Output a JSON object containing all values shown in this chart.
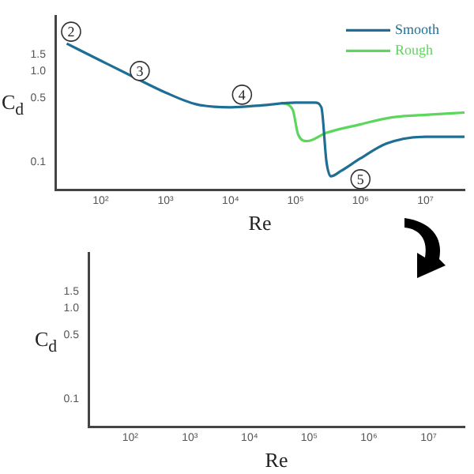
{
  "chart_data": [
    {
      "type": "line",
      "xlabel": "Re",
      "ylabel": "C$_{d}$",
      "log": "xy",
      "xlim": [
        20,
        40000000
      ],
      "ylim": [
        0.05,
        4
      ],
      "xticks": [
        {
          "value": 100,
          "label": "10²"
        },
        {
          "value": 1000,
          "label": "10³"
        },
        {
          "value": 10000,
          "label": "10⁴"
        },
        {
          "value": 100000,
          "label": "10⁵"
        },
        {
          "value": 1000000,
          "label": "10⁶"
        },
        {
          "value": 10000000,
          "label": "10⁷"
        }
      ],
      "yticks": [
        {
          "value": 0.1,
          "label": "0.1"
        },
        {
          "value": 0.5,
          "label": "0.5"
        },
        {
          "value": 1,
          "label": "1.0"
        },
        {
          "value": 1.5,
          "label": "1.5"
        }
      ],
      "grid": false,
      "legend": "top right",
      "marker": "none",
      "series": [
        {
          "name": "Smooth",
          "color": "#1f6e94",
          "x": [
            30,
            100,
            300,
            1000,
            3000,
            10000,
            30000,
            100000,
            200000,
            250000,
            300000,
            350000,
            500000,
            1000000,
            2500000,
            10000000,
            40000000
          ],
          "values": [
            2.0,
            1.3,
            0.88,
            0.58,
            0.43,
            0.4,
            0.42,
            0.45,
            0.45,
            0.4,
            0.1,
            0.07,
            0.08,
            0.11,
            0.16,
            0.19,
            0.19
          ]
        },
        {
          "name": "Rough",
          "color": "#5cd65c",
          "x": [
            60000,
            90000,
            110000,
            150000,
            300000,
            1000000,
            3000000,
            10000000,
            40000000
          ],
          "values": [
            0.45,
            0.38,
            0.2,
            0.17,
            0.21,
            0.26,
            0.31,
            0.33,
            0.35
          ]
        }
      ],
      "annotations": [
        {
          "text": "2",
          "x": 35,
          "y": 2.7
        },
        {
          "text": "3",
          "x": 400,
          "y": 1.0
        },
        {
          "text": "4",
          "x": 15000,
          "y": 0.55
        },
        {
          "text": "5",
          "x": 1000000,
          "y": 0.065
        }
      ]
    },
    {
      "type": "line",
      "xlabel": "Re",
      "ylabel": "C$_{d}$",
      "log": "xy",
      "xlim": [
        20,
        40000000
      ],
      "ylim": [
        0.05,
        4
      ],
      "xticks": [
        {
          "value": 100,
          "label": "10²"
        },
        {
          "value": 1000,
          "label": "10³"
        },
        {
          "value": 10000,
          "label": "10⁴"
        },
        {
          "value": 100000,
          "label": "10⁵"
        },
        {
          "value": 1000000,
          "label": "10⁶"
        },
        {
          "value": 10000000,
          "label": "10⁷"
        }
      ],
      "yticks": [
        {
          "value": 0.1,
          "label": "0.1"
        },
        {
          "value": 0.5,
          "label": "0.5"
        },
        {
          "value": 1,
          "label": "1.0"
        },
        {
          "value": 1.5,
          "label": "1.5"
        }
      ],
      "grid": false
    }
  ]
}
